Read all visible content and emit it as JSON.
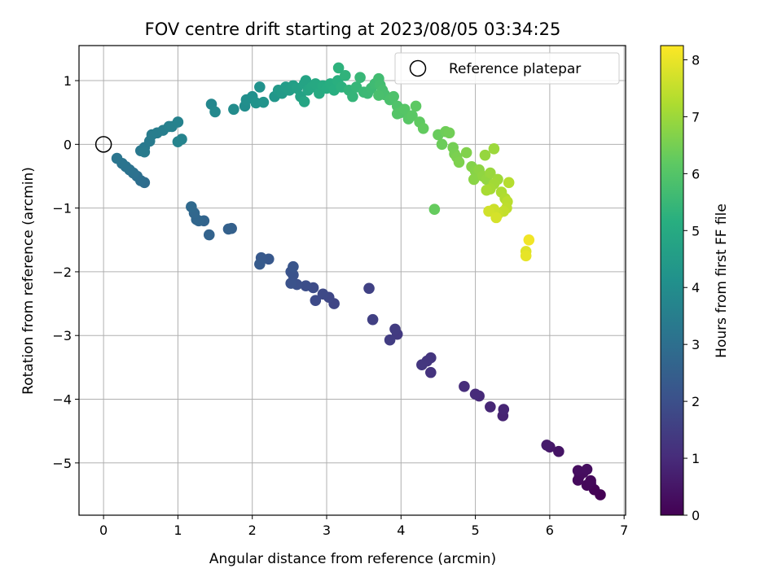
{
  "chart_data": {
    "type": "scatter",
    "title": "FOV centre drift starting at 2023/08/05 03:34:25",
    "xlabel": "Angular distance from reference (arcmin)",
    "ylabel": "Rotation from reference (arcmin)",
    "xlim": [
      -0.33,
      7.02
    ],
    "ylim": [
      -5.82,
      1.55
    ],
    "xticks": [
      "0",
      "1",
      "2",
      "3",
      "4",
      "5",
      "6",
      "7"
    ],
    "yticks": [
      "1",
      "0",
      "−1",
      "−2",
      "−3",
      "−4",
      "−5"
    ],
    "grid": true,
    "legend": {
      "placement": "top-right",
      "entries": [
        {
          "label": "Reference platepar",
          "marker": "open-circle"
        }
      ]
    },
    "reference_point": {
      "x": 0,
      "y": 0
    },
    "colorbar": {
      "label": "Hours from first FF file",
      "colormap": "viridis",
      "range": [
        0,
        8.25
      ],
      "ticks": [
        "0",
        "1",
        "2",
        "3",
        "4",
        "5",
        "6",
        "7",
        "8"
      ]
    },
    "points": [
      [
        6.68,
        -5.5,
        0.0
      ],
      [
        6.6,
        -5.42,
        0.05
      ],
      [
        6.55,
        -5.32,
        0.1
      ],
      [
        6.5,
        -5.35,
        0.13
      ],
      [
        6.55,
        -5.28,
        0.16
      ],
      [
        6.38,
        -5.27,
        0.2
      ],
      [
        6.4,
        -5.2,
        0.22
      ],
      [
        6.45,
        -5.15,
        0.25
      ],
      [
        6.38,
        -5.12,
        0.28
      ],
      [
        6.5,
        -5.1,
        0.3
      ],
      [
        6.12,
        -4.82,
        0.45
      ],
      [
        6.0,
        -4.75,
        0.55
      ],
      [
        5.96,
        -4.72,
        0.6
      ],
      [
        5.37,
        -4.26,
        0.8
      ],
      [
        5.38,
        -4.16,
        0.85
      ],
      [
        5.2,
        -4.12,
        0.9
      ],
      [
        5.05,
        -3.95,
        0.95
      ],
      [
        5.0,
        -3.92,
        1.0
      ],
      [
        4.85,
        -3.8,
        1.05
      ],
      [
        4.4,
        -3.58,
        1.2
      ],
      [
        4.4,
        -3.35,
        1.25
      ],
      [
        4.35,
        -3.4,
        1.28
      ],
      [
        4.28,
        -3.46,
        1.32
      ],
      [
        3.95,
        -2.98,
        1.4
      ],
      [
        3.92,
        -2.9,
        1.45
      ],
      [
        3.85,
        -3.07,
        1.48
      ],
      [
        3.62,
        -2.75,
        1.55
      ],
      [
        3.57,
        -2.26,
        1.6
      ],
      [
        3.1,
        -2.5,
        1.7
      ],
      [
        3.03,
        -2.4,
        1.75
      ],
      [
        2.95,
        -2.35,
        1.8
      ],
      [
        2.85,
        -2.45,
        1.85
      ],
      [
        2.82,
        -2.25,
        1.9
      ],
      [
        2.72,
        -2.22,
        1.95
      ],
      [
        2.6,
        -2.2,
        2.0
      ],
      [
        2.52,
        -2.18,
        2.05
      ],
      [
        2.55,
        -2.05,
        2.08
      ],
      [
        2.52,
        -2.0,
        2.1
      ],
      [
        2.55,
        -1.92,
        2.15
      ],
      [
        2.22,
        -1.8,
        2.25
      ],
      [
        2.12,
        -1.78,
        2.3
      ],
      [
        2.1,
        -1.88,
        2.35
      ],
      [
        1.72,
        -1.32,
        2.5
      ],
      [
        1.68,
        -1.33,
        2.55
      ],
      [
        1.42,
        -1.42,
        2.6
      ],
      [
        1.35,
        -1.2,
        2.65
      ],
      [
        1.28,
        -1.2,
        2.7
      ],
      [
        1.25,
        -1.18,
        2.72
      ],
      [
        1.22,
        -1.08,
        2.75
      ],
      [
        1.18,
        -0.98,
        2.8
      ],
      [
        0.55,
        -0.6,
        2.9
      ],
      [
        0.5,
        -0.57,
        2.95
      ],
      [
        0.45,
        -0.5,
        3.0
      ],
      [
        0.4,
        -0.45,
        3.05
      ],
      [
        0.35,
        -0.4,
        3.08
      ],
      [
        0.3,
        -0.35,
        3.12
      ],
      [
        0.25,
        -0.3,
        3.16
      ],
      [
        0.18,
        -0.22,
        3.2
      ],
      [
        0.5,
        -0.1,
        3.3
      ],
      [
        0.55,
        -0.05,
        3.33
      ],
      [
        0.62,
        0.05,
        3.36
      ],
      [
        0.55,
        -0.12,
        3.38
      ],
      [
        0.65,
        0.15,
        3.42
      ],
      [
        0.72,
        0.18,
        3.46
      ],
      [
        0.8,
        0.22,
        3.5
      ],
      [
        0.88,
        0.28,
        3.55
      ],
      [
        0.92,
        0.28,
        3.58
      ],
      [
        1.0,
        0.35,
        3.62
      ],
      [
        1.05,
        0.08,
        3.66
      ],
      [
        1.0,
        0.04,
        3.68
      ],
      [
        1.45,
        0.63,
        3.8
      ],
      [
        1.5,
        0.51,
        3.85
      ],
      [
        1.75,
        0.55,
        3.95
      ],
      [
        1.9,
        0.6,
        4.0
      ],
      [
        1.92,
        0.7,
        4.05
      ],
      [
        2.0,
        0.75,
        4.1
      ],
      [
        2.1,
        0.9,
        4.15
      ],
      [
        2.05,
        0.65,
        4.18
      ],
      [
        2.15,
        0.66,
        4.22
      ],
      [
        2.3,
        0.75,
        4.3
      ],
      [
        2.35,
        0.85,
        4.4
      ],
      [
        2.4,
        0.8,
        4.45
      ],
      [
        2.45,
        0.9,
        4.5
      ],
      [
        2.5,
        0.85,
        4.55
      ],
      [
        2.55,
        0.92,
        4.6
      ],
      [
        2.6,
        0.88,
        4.65
      ],
      [
        2.65,
        0.75,
        4.7
      ],
      [
        2.7,
        0.95,
        4.75
      ],
      [
        2.72,
        1.0,
        4.78
      ],
      [
        2.75,
        0.85,
        4.82
      ],
      [
        2.7,
        0.67,
        4.85
      ],
      [
        2.8,
        0.9,
        4.9
      ],
      [
        2.85,
        0.95,
        4.95
      ],
      [
        2.9,
        0.8,
        5.0
      ],
      [
        2.95,
        0.92,
        5.05
      ],
      [
        3.0,
        0.88,
        5.08
      ],
      [
        3.05,
        0.95,
        5.12
      ],
      [
        3.1,
        0.85,
        5.16
      ],
      [
        3.15,
        1.0,
        5.2
      ],
      [
        3.2,
        0.9,
        5.24
      ],
      [
        3.16,
        1.2,
        5.28
      ],
      [
        3.25,
        1.08,
        5.32
      ],
      [
        3.3,
        0.85,
        5.36
      ],
      [
        3.35,
        0.75,
        5.4
      ],
      [
        3.4,
        0.9,
        5.44
      ],
      [
        3.45,
        1.05,
        5.48
      ],
      [
        3.5,
        0.82,
        5.52
      ],
      [
        3.55,
        0.8,
        5.55
      ],
      [
        3.6,
        0.88,
        5.58
      ],
      [
        3.65,
        0.95,
        5.62
      ],
      [
        3.7,
        1.03,
        5.66
      ],
      [
        3.72,
        0.93,
        5.7
      ],
      [
        3.75,
        0.85,
        5.74
      ],
      [
        3.78,
        0.78,
        5.78
      ],
      [
        3.7,
        0.77,
        5.8
      ],
      [
        3.85,
        0.7,
        5.84
      ],
      [
        3.9,
        0.75,
        5.88
      ],
      [
        3.95,
        0.6,
        5.92
      ],
      [
        4.0,
        0.5,
        5.96
      ],
      [
        3.95,
        0.48,
        6.0
      ],
      [
        4.05,
        0.55,
        6.04
      ],
      [
        4.1,
        0.4,
        6.08
      ],
      [
        4.15,
        0.45,
        6.12
      ],
      [
        4.2,
        0.6,
        6.16
      ],
      [
        4.25,
        0.35,
        6.2
      ],
      [
        4.3,
        0.25,
        6.24
      ],
      [
        4.45,
        -1.02,
        6.28
      ],
      [
        4.5,
        0.15,
        6.32
      ],
      [
        4.55,
        0.0,
        6.36
      ],
      [
        4.6,
        0.2,
        6.4
      ],
      [
        4.65,
        0.18,
        6.44
      ],
      [
        4.7,
        -0.05,
        6.48
      ],
      [
        4.72,
        -0.15,
        6.52
      ],
      [
        4.75,
        -0.2,
        6.56
      ],
      [
        4.78,
        -0.28,
        6.6
      ],
      [
        4.88,
        -0.13,
        6.64
      ],
      [
        4.95,
        -0.35,
        6.68
      ],
      [
        5.0,
        -0.42,
        6.72
      ],
      [
        4.98,
        -0.55,
        6.76
      ],
      [
        5.05,
        -0.4,
        6.8
      ],
      [
        5.1,
        -0.5,
        6.84
      ],
      [
        5.15,
        -0.55,
        6.88
      ],
      [
        5.13,
        -0.17,
        6.92
      ],
      [
        5.2,
        -0.45,
        6.96
      ],
      [
        5.25,
        -0.07,
        7.0
      ],
      [
        5.3,
        -0.55,
        7.04
      ],
      [
        5.25,
        -0.62,
        7.08
      ],
      [
        5.2,
        -0.7,
        7.12
      ],
      [
        5.15,
        -0.72,
        7.16
      ],
      [
        5.35,
        -0.75,
        7.2
      ],
      [
        5.4,
        -0.85,
        7.26
      ],
      [
        5.45,
        -0.6,
        7.32
      ],
      [
        5.43,
        -0.9,
        7.38
      ],
      [
        5.42,
        -1.0,
        7.44
      ],
      [
        5.38,
        -1.05,
        7.5
      ],
      [
        5.3,
        -1.1,
        7.56
      ],
      [
        5.25,
        -1.02,
        7.62
      ],
      [
        5.18,
        -1.05,
        7.68
      ],
      [
        5.28,
        -1.15,
        7.74
      ],
      [
        5.68,
        -1.68,
        7.85
      ],
      [
        5.68,
        -1.75,
        7.95
      ],
      [
        5.72,
        -1.5,
        8.1
      ]
    ]
  }
}
